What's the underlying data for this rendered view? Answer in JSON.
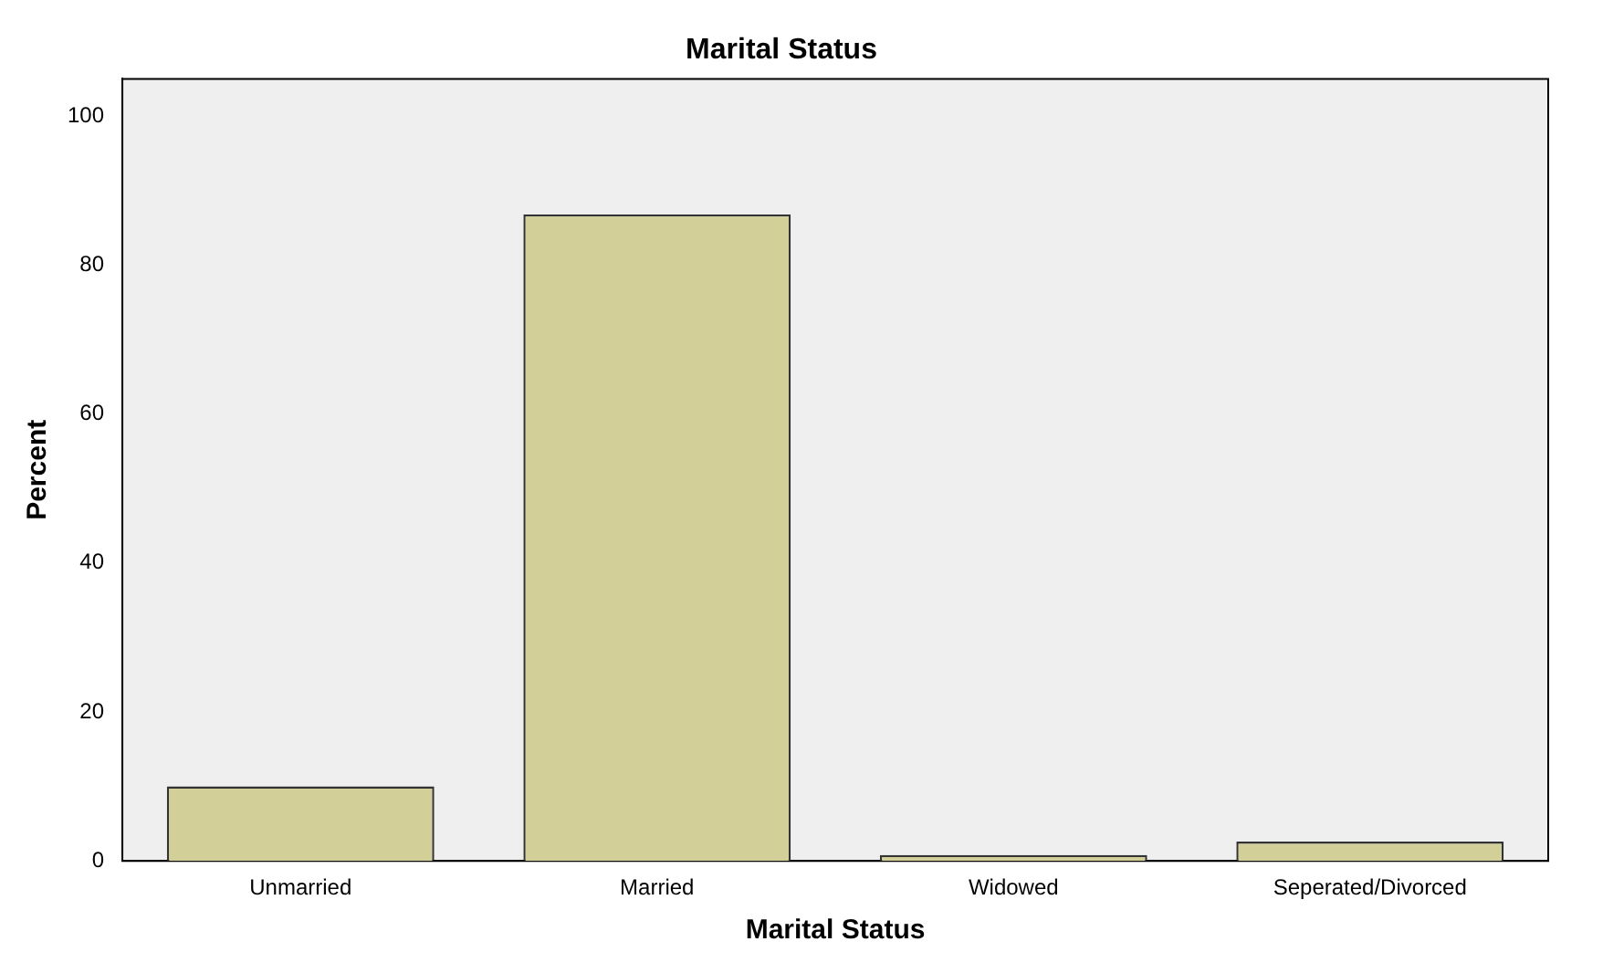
{
  "chart_data": {
    "type": "bar",
    "title": "Marital Status",
    "xlabel": "Marital Status",
    "ylabel": "Percent",
    "categories": [
      "Unmarried",
      "Married",
      "Widowed",
      "Seperated/Divorced"
    ],
    "values": [
      10.0,
      86.8,
      0.8,
      2.6
    ],
    "color": "#d3cf98",
    "ylim": [
      0,
      105
    ],
    "yticks": [
      0,
      20,
      40,
      60,
      80,
      100
    ],
    "grid": false
  }
}
